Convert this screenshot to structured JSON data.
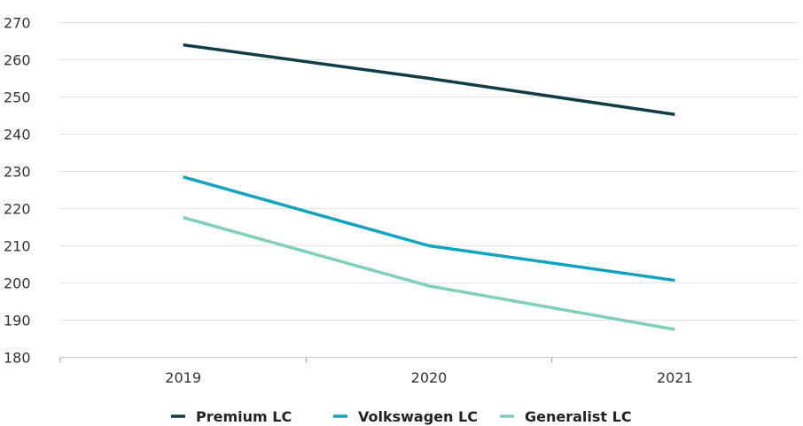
{
  "chart_data": {
    "type": "line",
    "title": "",
    "xlabel": "",
    "ylabel": "",
    "categories": [
      "2019",
      "2020",
      "2021"
    ],
    "ylim": [
      180,
      270
    ],
    "yticks": [
      180,
      190,
      200,
      210,
      220,
      230,
      240,
      250,
      260,
      270
    ],
    "grid": true,
    "legend_position": "bottom",
    "series": [
      {
        "name": "Premium LC",
        "values": [
          264,
          255,
          245.3
        ],
        "color": "#0f3c46"
      },
      {
        "name": "Volkswagen LC",
        "values": [
          228.5,
          210,
          200.7
        ],
        "color": "#0fa3c2"
      },
      {
        "name": "Generalist LC",
        "values": [
          217.6,
          199.2,
          187.5
        ],
        "color": "#7fcfbd"
      }
    ]
  }
}
